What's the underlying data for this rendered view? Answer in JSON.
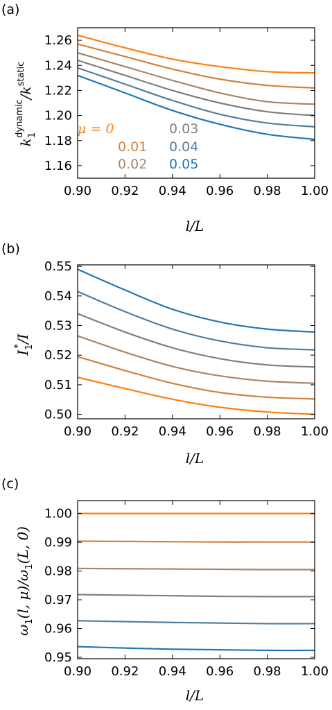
{
  "chart_data": [
    {
      "panel_label": "(a)",
      "type": "line",
      "xlabel": "l/L",
      "ylabel": "k1^dynamic / k^static",
      "ylabel_parts": {
        "k": "k",
        "sub": "1",
        "sup1": "dynamic",
        "slash": "/",
        "k2": "k",
        "sup2": "static"
      },
      "xlim": [
        0.9,
        1.0
      ],
      "ylim": [
        1.15,
        1.27
      ],
      "x_ticks": [
        "0.90",
        "0.92",
        "0.94",
        "0.96",
        "0.98",
        "1.00"
      ],
      "y_ticks": [
        "1.16",
        "1.18",
        "1.20",
        "1.22",
        "1.24",
        "1.26"
      ],
      "y_tick_values": [
        1.16,
        1.18,
        1.2,
        1.22,
        1.24,
        1.26
      ],
      "legend": {
        "entries": [
          {
            "text": "μ = 0",
            "series": 0
          },
          {
            "text": "0.01",
            "series": 1
          },
          {
            "text": "0.02",
            "series": 2
          },
          {
            "text": "0.03",
            "series": 3
          },
          {
            "text": "0.04",
            "series": 4
          },
          {
            "text": "0.05",
            "series": 5
          }
        ]
      },
      "x": [
        0.9,
        0.92,
        0.94,
        0.96,
        0.98,
        1.0
      ],
      "series": [
        {
          "mu": 0.0,
          "color": "#ff7f0e",
          "values": [
            1.264,
            1.254,
            1.245,
            1.239,
            1.235,
            1.234
          ]
        },
        {
          "mu": 0.01,
          "color": "#d2823a",
          "values": [
            1.257,
            1.247,
            1.237,
            1.229,
            1.224,
            1.222
          ]
        },
        {
          "mu": 0.02,
          "color": "#a8846a",
          "values": [
            1.25,
            1.239,
            1.228,
            1.218,
            1.211,
            1.209
          ]
        },
        {
          "mu": 0.03,
          "color": "#7f7f7f",
          "values": [
            1.244,
            1.232,
            1.22,
            1.21,
            1.203,
            1.2
          ]
        },
        {
          "mu": 0.04,
          "color": "#507d9e",
          "values": [
            1.238,
            1.225,
            1.212,
            1.201,
            1.194,
            1.191
          ]
        },
        {
          "mu": 0.05,
          "color": "#1f77b4",
          "values": [
            1.232,
            1.218,
            1.204,
            1.193,
            1.185,
            1.181
          ]
        }
      ]
    },
    {
      "panel_label": "(b)",
      "type": "line",
      "xlabel": "l/L",
      "ylabel": "I1*/I",
      "ylabel_parts": {
        "i": "I",
        "sub": "1",
        "sup": "*",
        "rest": "/I"
      },
      "xlim": [
        0.9,
        1.0
      ],
      "ylim": [
        0.4985,
        0.5505
      ],
      "x_ticks": [
        "0.90",
        "0.92",
        "0.94",
        "0.96",
        "0.98",
        "1.00"
      ],
      "y_ticks": [
        "0.50",
        "0.51",
        "0.52",
        "0.53",
        "0.54",
        "0.55"
      ],
      "y_tick_values": [
        0.5,
        0.51,
        0.52,
        0.53,
        0.54,
        0.55
      ],
      "x": [
        0.9,
        0.92,
        0.94,
        0.96,
        0.98,
        1.0
      ],
      "series": [
        {
          "mu": 0.0,
          "color": "#ff7f0e",
          "values": [
            0.5125,
            0.5087,
            0.5051,
            0.5024,
            0.5008,
            0.5
          ]
        },
        {
          "mu": 0.01,
          "color": "#d2823a",
          "values": [
            0.5195,
            0.5148,
            0.5105,
            0.5074,
            0.5058,
            0.5052
          ]
        },
        {
          "mu": 0.02,
          "color": "#a8846a",
          "values": [
            0.5265,
            0.521,
            0.5162,
            0.513,
            0.5112,
            0.5105
          ]
        },
        {
          "mu": 0.03,
          "color": "#7f7f7f",
          "values": [
            0.534,
            0.5278,
            0.5225,
            0.5188,
            0.5167,
            0.516
          ]
        },
        {
          "mu": 0.04,
          "color": "#507d9e",
          "values": [
            0.5415,
            0.5347,
            0.5288,
            0.5248,
            0.5225,
            0.5218
          ]
        },
        {
          "mu": 0.05,
          "color": "#1f77b4",
          "values": [
            0.549,
            0.542,
            0.5355,
            0.5312,
            0.5288,
            0.5278
          ]
        }
      ]
    },
    {
      "panel_label": "(c)",
      "type": "line",
      "xlabel": "l/L",
      "ylabel": "ω1(l, μ)/ω1(L, 0)",
      "ylabel_parts": {
        "w": "ω",
        "sub": "1",
        "args1": "(l, μ)/",
        "w2": "ω",
        "sub2": "1",
        "args2": "(L, 0)"
      },
      "xlim": [
        0.9,
        1.0
      ],
      "ylim": [
        0.9495,
        1.0045
      ],
      "x_ticks": [
        "0.90",
        "0.92",
        "0.94",
        "0.96",
        "0.98",
        "1.00"
      ],
      "y_ticks": [
        "0.95",
        "0.96",
        "0.97",
        "0.98",
        "0.99",
        "1.00"
      ],
      "y_tick_values": [
        0.95,
        0.96,
        0.97,
        0.98,
        0.99,
        1.0
      ],
      "x": [
        0.9,
        0.92,
        0.94,
        0.96,
        0.98,
        1.0
      ],
      "series": [
        {
          "mu": 0.0,
          "color": "#ff7f0e",
          "values": [
            1.0,
            1.0,
            1.0,
            1.0,
            1.0,
            1.0
          ]
        },
        {
          "mu": 0.01,
          "color": "#d2823a",
          "values": [
            0.9904,
            0.9903,
            0.9902,
            0.9901,
            0.9901,
            0.9901
          ]
        },
        {
          "mu": 0.02,
          "color": "#a8846a",
          "values": [
            0.9809,
            0.9808,
            0.9807,
            0.9806,
            0.9805,
            0.9805
          ]
        },
        {
          "mu": 0.03,
          "color": "#7f7f7f",
          "values": [
            0.9718,
            0.9716,
            0.9714,
            0.9712,
            0.9711,
            0.9711
          ]
        },
        {
          "mu": 0.04,
          "color": "#507d9e",
          "values": [
            0.9627,
            0.9624,
            0.9621,
            0.9619,
            0.9617,
            0.9617
          ]
        },
        {
          "mu": 0.05,
          "color": "#1f77b4",
          "values": [
            0.9537,
            0.9532,
            0.9528,
            0.9526,
            0.9524,
            0.9524
          ]
        }
      ]
    }
  ]
}
